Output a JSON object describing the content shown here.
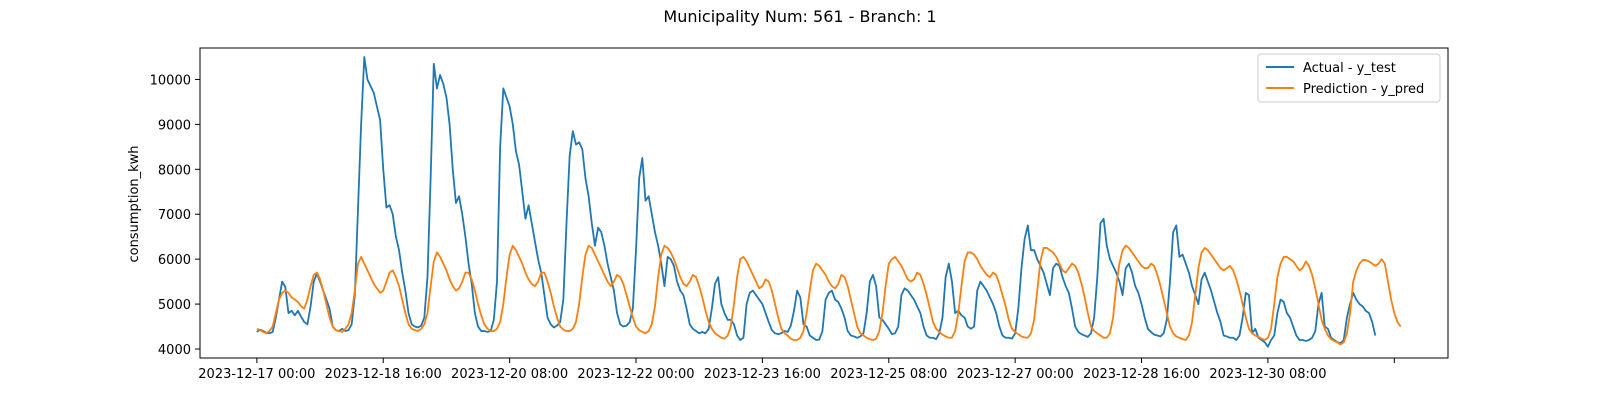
{
  "chart_data": {
    "type": "line",
    "title": "Municipality Num: 561 - Branch: 1",
    "xlabel": "",
    "ylabel": "consumption_kwh",
    "ylim": [
      3800,
      10700
    ],
    "y_ticks": [
      4000,
      5000,
      6000,
      7000,
      8000,
      9000,
      10000
    ],
    "x_tick_labels": [
      "2023-12-17 00:00",
      "2023-12-18 16:00",
      "2023-12-20 08:00",
      "2023-12-22 00:00",
      "2023-12-23 16:00",
      "2023-12-25 08:00",
      "2023-12-27 00:00",
      "2023-12-28 16:00",
      "2023-12-30 08:00",
      ""
    ],
    "x_tick_hours": [
      0,
      40,
      80,
      120,
      160,
      200,
      240,
      280,
      320,
      360
    ],
    "x_range_hours": [
      -18,
      377
    ],
    "grid": false,
    "legend_position": "top-right",
    "hour_step": 1,
    "series": [
      {
        "name": "Actual - y_test",
        "color": "#1f77b4",
        "values": [
          4380,
          4430,
          4400,
          4360,
          4350,
          4380,
          4700,
          5100,
          5500,
          5380,
          4800,
          4850,
          4750,
          4850,
          4720,
          4600,
          4550,
          4950,
          5500,
          5680,
          5500,
          5300,
          5100,
          4900,
          4500,
          4420,
          4400,
          4450,
          4400,
          4420,
          4550,
          5200,
          7100,
          9000,
          10500,
          10000,
          9850,
          9700,
          9400,
          9100,
          8000,
          7150,
          7200,
          7000,
          6500,
          6200,
          5700,
          5300,
          4800,
          4550,
          4500,
          4480,
          4520,
          4700,
          5600,
          7800,
          10350,
          9800,
          10100,
          9900,
          9600,
          9000,
          8000,
          7250,
          7400,
          7000,
          6500,
          5900,
          5450,
          4800,
          4500,
          4400,
          4400,
          4380,
          4400,
          4650,
          5500,
          8500,
          9800,
          9600,
          9400,
          9000,
          8400,
          8100,
          7500,
          6900,
          7200,
          6800,
          6400,
          6000,
          5700,
          5200,
          4700,
          4550,
          4480,
          4520,
          4600,
          5100,
          6800,
          8300,
          8850,
          8550,
          8600,
          8450,
          7800,
          7400,
          6800,
          6300,
          6700,
          6600,
          6300,
          5900,
          5600,
          5300,
          4800,
          4550,
          4500,
          4520,
          4600,
          4900,
          6200,
          7800,
          8250,
          7300,
          7400,
          7000,
          6600,
          6300,
          5900,
          5400,
          6050,
          6000,
          5850,
          5500,
          5300,
          5200,
          4900,
          4550,
          4450,
          4400,
          4350,
          4380,
          4350,
          4450,
          4900,
          5450,
          5600,
          5000,
          4800,
          4650,
          4650,
          4550,
          4300,
          4200,
          4250,
          5000,
          5250,
          5300,
          5200,
          5100,
          5000,
          4800,
          4600,
          4420,
          4350,
          4330,
          4350,
          4400,
          4380,
          4520,
          4850,
          5300,
          5150,
          4550,
          4500,
          4300,
          4250,
          4200,
          4210,
          4400,
          5100,
          5250,
          5300,
          5100,
          5050,
          4900,
          4700,
          4400,
          4300,
          4280,
          4250,
          4280,
          4350,
          4800,
          5500,
          5650,
          5400,
          4700,
          4650,
          4550,
          4450,
          4330,
          4350,
          4500,
          5200,
          5350,
          5300,
          5200,
          5100,
          4950,
          4800,
          4500,
          4300,
          4250,
          4250,
          4220,
          4350,
          4700,
          5600,
          5900,
          5500,
          4800,
          4850,
          4750,
          4700,
          4500,
          4450,
          4500,
          5300,
          5500,
          5400,
          5300,
          5150,
          5000,
          4800,
          4500,
          4300,
          4250,
          4250,
          4230,
          4350,
          4900,
          5800,
          6450,
          6750,
          6200,
          6200,
          6000,
          5850,
          5700,
          5450,
          5200,
          5800,
          5900,
          5850,
          5600,
          5400,
          5250,
          4900,
          4500,
          4380,
          4330,
          4300,
          4270,
          4350,
          4700,
          5600,
          6800,
          6900,
          6300,
          6000,
          5850,
          5700,
          5500,
          5200,
          5800,
          5900,
          5700,
          5400,
          5250,
          5000,
          4700,
          4450,
          4380,
          4320,
          4300,
          4280,
          4350,
          4650,
          5500,
          6600,
          6750,
          6050,
          6100,
          5900,
          5700,
          5400,
          5200,
          5000,
          5550,
          5700,
          5500,
          5300,
          5050,
          4800,
          4600,
          4300,
          4280,
          4250,
          4250,
          4200,
          4300,
          4700,
          5250,
          5200,
          4350,
          4450,
          4250,
          4200,
          4150,
          4050,
          4200,
          4300,
          4800,
          5100,
          5050,
          4800,
          4700,
          4500,
          4300,
          4200,
          4200,
          4180,
          4200,
          4250,
          4400,
          5000,
          5250,
          4500,
          4450,
          4250,
          4200,
          4150,
          4130,
          4200,
          4700,
          5000,
          5250,
          5100,
          5000,
          4950,
          4850,
          4800,
          4600,
          4300
        ]
      },
      {
        "name": "Prediction - y_pred",
        "color": "#ff7f0e",
        "values": [
          4450,
          4420,
          4380,
          4350,
          4400,
          4500,
          4800,
          5100,
          5250,
          5300,
          5250,
          5150,
          5100,
          5050,
          4950,
          4900,
          5100,
          5400,
          5650,
          5700,
          5550,
          5300,
          5000,
          4700,
          4500,
          4420,
          4400,
          4380,
          4450,
          4550,
          4800,
          5300,
          5900,
          6050,
          5900,
          5750,
          5600,
          5450,
          5350,
          5250,
          5300,
          5500,
          5700,
          5750,
          5600,
          5400,
          5100,
          4800,
          4550,
          4450,
          4420,
          4400,
          4450,
          4550,
          4800,
          5400,
          5950,
          6150,
          6050,
          5900,
          5750,
          5550,
          5400,
          5300,
          5350,
          5500,
          5700,
          5700,
          5550,
          5300,
          5000,
          4750,
          4550,
          4450,
          4400,
          4400,
          4450,
          4600,
          5000,
          5600,
          6100,
          6300,
          6200,
          6050,
          5900,
          5700,
          5550,
          5450,
          5400,
          5500,
          5700,
          5700,
          5500,
          5250,
          4950,
          4700,
          4500,
          4430,
          4400,
          4400,
          4450,
          4600,
          5000,
          5600,
          6100,
          6300,
          6250,
          6100,
          5950,
          5800,
          5650,
          5500,
          5400,
          5500,
          5650,
          5600,
          5450,
          5200,
          4950,
          4700,
          4500,
          4420,
          4380,
          4350,
          4400,
          4550,
          4950,
          5600,
          6100,
          6300,
          6250,
          6150,
          6000,
          5800,
          5600,
          5450,
          5400,
          5500,
          5650,
          5600,
          5400,
          5150,
          4850,
          4600,
          4450,
          4350,
          4300,
          4250,
          4230,
          4300,
          4500,
          5000,
          5600,
          6000,
          6050,
          5950,
          5800,
          5650,
          5500,
          5350,
          5400,
          5550,
          5500,
          5300,
          5000,
          4700,
          4450,
          4350,
          4300,
          4230,
          4200,
          4200,
          4250,
          4400,
          4800,
          5300,
          5750,
          5900,
          5850,
          5750,
          5650,
          5500,
          5400,
          5350,
          5450,
          5650,
          5600,
          5400,
          5100,
          4800,
          4500,
          4350,
          4300,
          4250,
          4220,
          4200,
          4230,
          4400,
          4800,
          5400,
          5900,
          6000,
          6050,
          5950,
          5850,
          5700,
          5550,
          5500,
          5550,
          5700,
          5650,
          5450,
          5200,
          4900,
          4600,
          4450,
          4380,
          4320,
          4280,
          4250,
          4250,
          4400,
          4800,
          5400,
          5950,
          6150,
          6150,
          6100,
          6000,
          5850,
          5750,
          5650,
          5600,
          5700,
          5650,
          5450,
          5200,
          4950,
          4650,
          4450,
          4380,
          4330,
          4280,
          4260,
          4250,
          4350,
          4650,
          5300,
          5950,
          6250,
          6250,
          6200,
          6150,
          6050,
          5900,
          5750,
          5700,
          5800,
          5900,
          5850,
          5700,
          5450,
          5150,
          4800,
          4500,
          4400,
          4350,
          4300,
          4250,
          4250,
          4350,
          4700,
          5400,
          5900,
          6200,
          6300,
          6250,
          6150,
          6050,
          5950,
          5850,
          5800,
          5800,
          5900,
          5850,
          5650,
          5400,
          5100,
          4800,
          4500,
          4350,
          4280,
          4250,
          4220,
          4200,
          4300,
          4600,
          5200,
          5800,
          6150,
          6250,
          6200,
          6100,
          6000,
          5900,
          5800,
          5750,
          5800,
          5850,
          5750,
          5550,
          5300,
          5000,
          4700,
          4450,
          4350,
          4300,
          4270,
          4230,
          4200,
          4250,
          4450,
          5000,
          5600,
          5900,
          6050,
          6050,
          6000,
          5950,
          5850,
          5750,
          5800,
          5950,
          5850,
          5650,
          5350,
          5000,
          4650,
          4450,
          4300,
          4220,
          4180,
          4150,
          4100,
          4150,
          4350,
          4800,
          5500,
          5750,
          5900,
          5980,
          5980,
          5950,
          5900,
          5850,
          5900,
          6000,
          5900,
          5500,
          5100,
          4800,
          4600,
          4500
        ]
      }
    ]
  }
}
